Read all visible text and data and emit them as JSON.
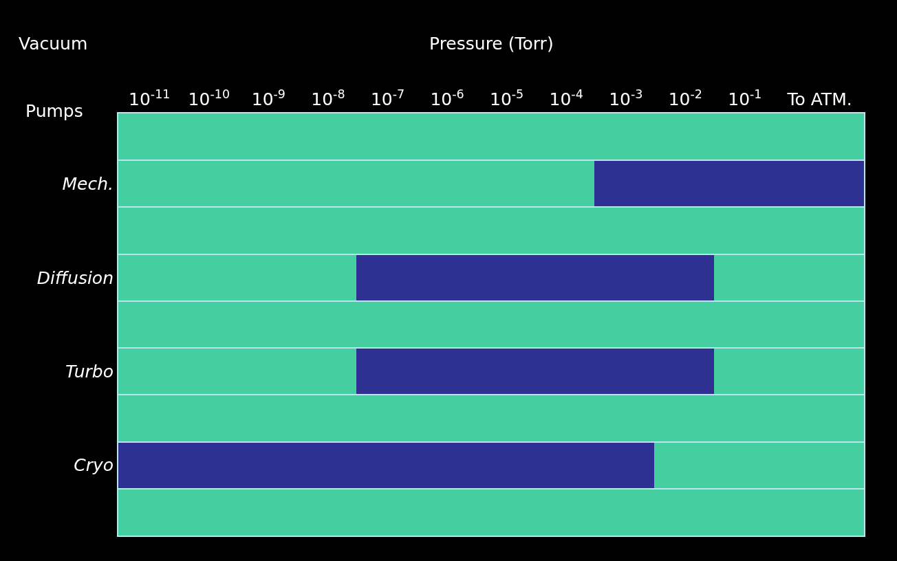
{
  "chart_data": {
    "type": "bar",
    "orientation": "horizontal",
    "log": "x",
    "xlabel": "Pressure (Torr)",
    "ylabel": "Vacuum Pumps",
    "categories": [
      null,
      "Mech.",
      null,
      "Diffusion",
      null,
      "Turbo",
      null,
      "Cryo",
      null
    ],
    "base": [
      null,
      0.0003,
      null,
      3e-08,
      null,
      3e-08,
      null,
      3e-12,
      null
    ],
    "values": [
      null,
      10,
      null,
      0.03,
      null,
      0.03,
      null,
      0.003,
      null
    ],
    "color": "#2e3192",
    "xlim": [
      3e-12,
      10
    ],
    "xticks": [
      {
        "value": 1e-11,
        "label": "10$^{-11}$"
      },
      {
        "value": 1e-10,
        "label": "10$^{-10}$"
      },
      {
        "value": 1e-09,
        "label": "10$^{-9}$"
      },
      {
        "value": 1e-08,
        "label": "10$^{-8}$"
      },
      {
        "value": 1e-07,
        "label": "10$^{-7}$"
      },
      {
        "value": 1e-06,
        "label": "10$^{-6}$"
      },
      {
        "value": 1e-05,
        "label": "10$^{-5}$"
      },
      {
        "value": 0.0001,
        "label": "10$^{-4}$"
      },
      {
        "value": 0.001,
        "label": "10$^{-3}$"
      },
      {
        "value": 0.01,
        "label": "10$^{-2}$"
      },
      {
        "value": 0.1,
        "label": "10$^{-1}$"
      },
      {
        "value": 1.8,
        "label": "To ATM."
      }
    ],
    "grid": "y",
    "legend": false
  }
}
